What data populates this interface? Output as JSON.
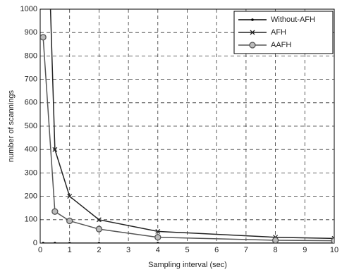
{
  "chart_data": {
    "type": "line",
    "x_label": "Sampling interval (sec)",
    "y_label": "number of scannings",
    "x": [
      0.1,
      0.5,
      1,
      2,
      4,
      8,
      10
    ],
    "series": [
      {
        "name": "Without-AFH",
        "color": "#000000",
        "marker": "dot",
        "values": [
          0,
          0,
          0,
          0,
          0,
          0,
          0
        ]
      },
      {
        "name": "AFH",
        "color": "#222222",
        "marker": "x",
        "values": [
          2000,
          400,
          200,
          100,
          50,
          25,
          20
        ]
      },
      {
        "name": "AAFH",
        "color": "#555555",
        "marker": "circle",
        "values": [
          880,
          135,
          95,
          60,
          25,
          12,
          10
        ]
      }
    ],
    "xlim": [
      0,
      10
    ],
    "xticks": [
      0,
      1,
      2,
      3,
      4,
      5,
      6,
      7,
      8,
      9,
      10
    ],
    "ylim": [
      0,
      1000
    ],
    "yticks": [
      0,
      100,
      200,
      300,
      400,
      500,
      600,
      700,
      800,
      900,
      1000
    ],
    "grid": true,
    "legend": "upper right"
  }
}
